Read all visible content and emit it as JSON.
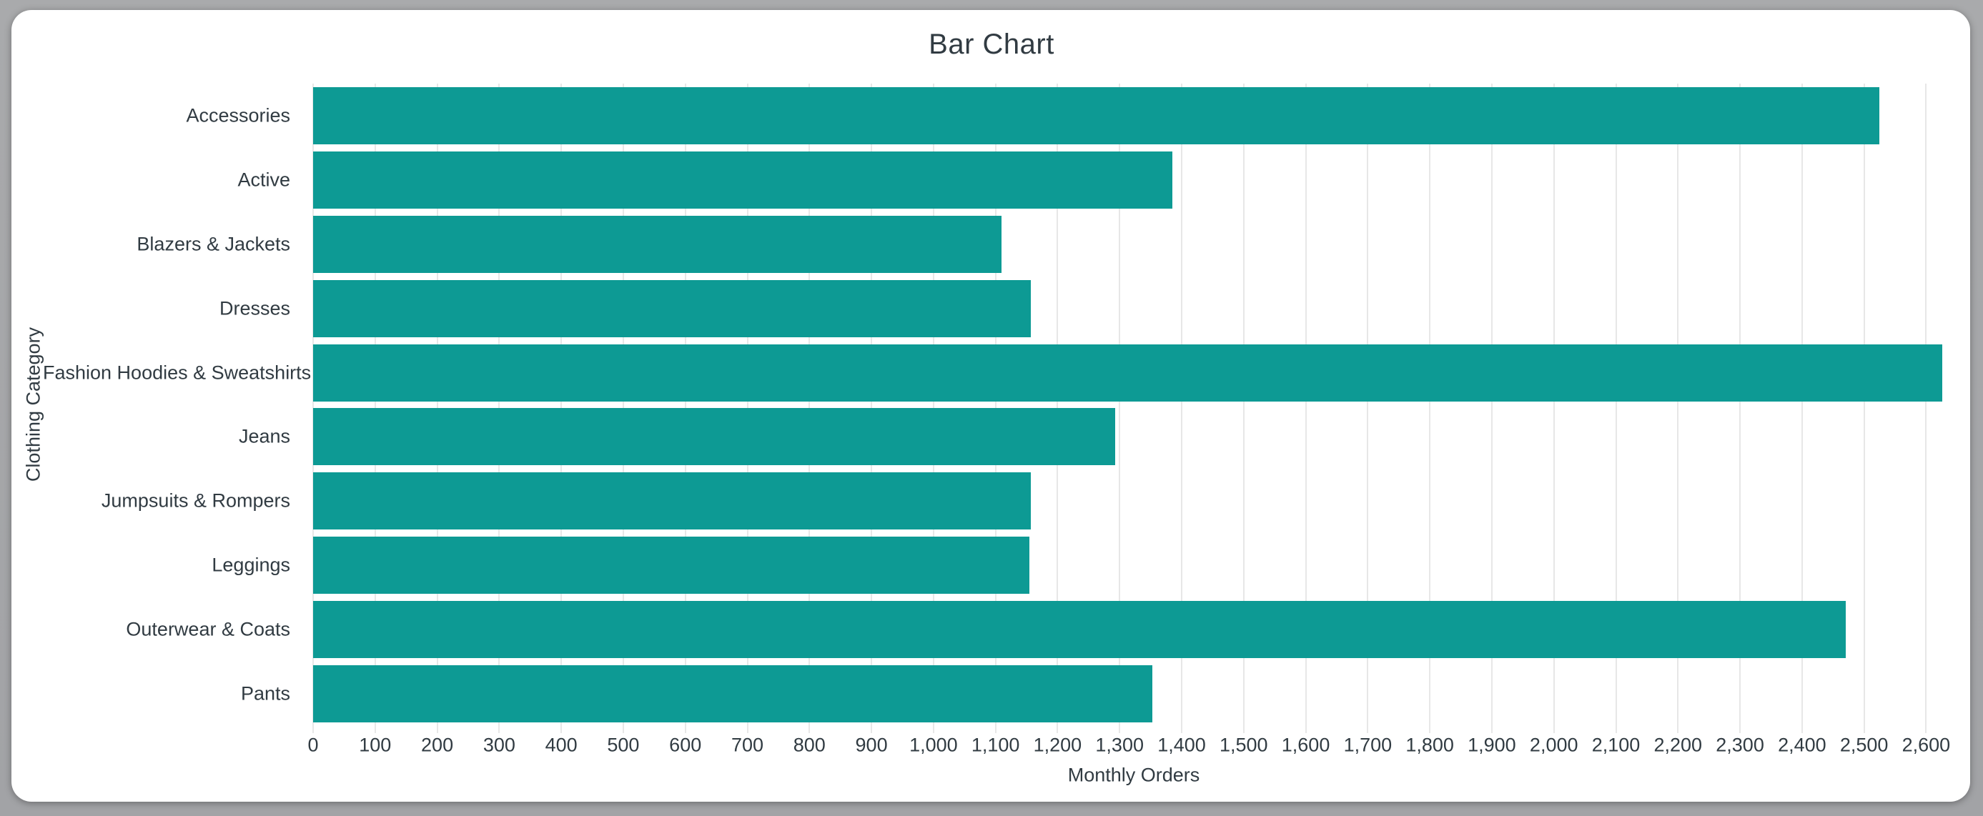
{
  "window": {
    "frame_color": "#a7a8aa",
    "card_color": "#ffffff"
  },
  "chart_data": {
    "type": "bar",
    "orientation": "horizontal",
    "title": "Bar Chart",
    "xlabel": "Monthly Orders",
    "ylabel": "Clothing Category",
    "categories": [
      "Accessories",
      "Active",
      "Blazers & Jackets",
      "Dresses",
      "Fashion Hoodies & Sweatshirts",
      "Jeans",
      "Jumpsuits & Rompers",
      "Leggings",
      "Outerwear & Coats",
      "Pants"
    ],
    "values": [
      2525,
      1385,
      1110,
      1157,
      2626,
      1293,
      1157,
      1155,
      2470,
      1353
    ],
    "xlim": [
      0,
      2626
    ],
    "xticks": [
      0,
      100,
      200,
      300,
      400,
      500,
      600,
      700,
      800,
      900,
      1000,
      1100,
      1200,
      1300,
      1400,
      1500,
      1600,
      1700,
      1800,
      1900,
      2000,
      2100,
      2200,
      2300,
      2400,
      2500,
      2600
    ],
    "xtick_label_format": "thousands-comma",
    "grid": true,
    "legend_position": "none",
    "bar_color": "#0d9a94",
    "grid_color": "#e7e7e7",
    "text_color": "#313b42"
  }
}
